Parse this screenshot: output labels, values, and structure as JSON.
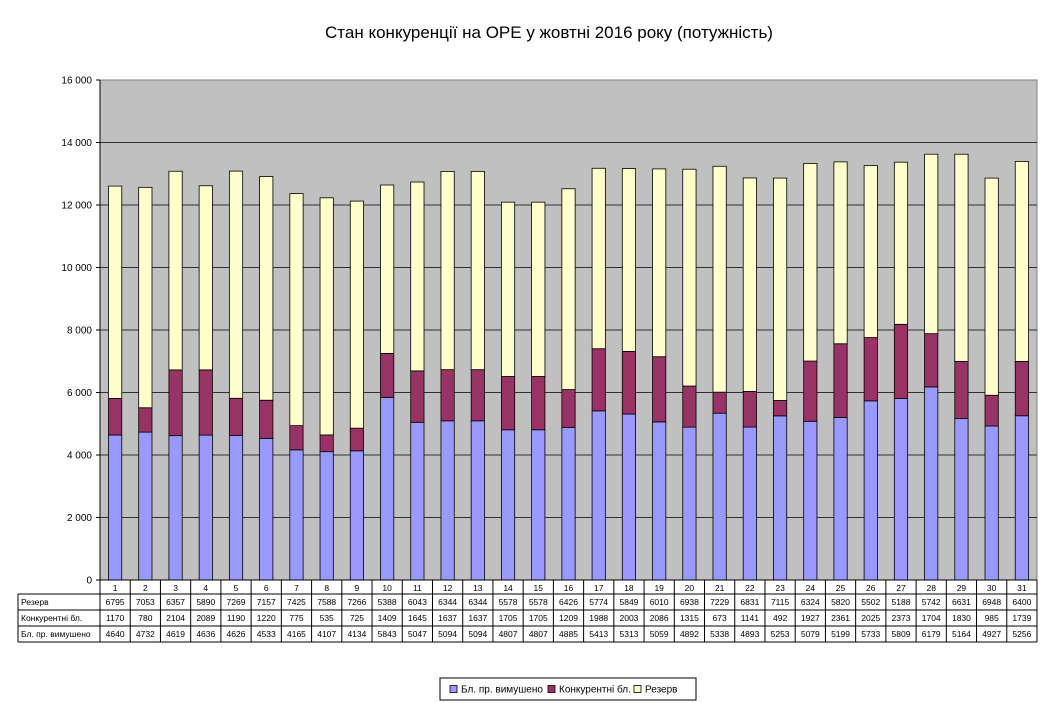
{
  "chart_data": {
    "type": "bar",
    "stacked": true,
    "title": "Стан конкуренції на ОРЕ  у жовтні 2016 року (потужність)",
    "xlabel": "",
    "ylabel": "",
    "ylim": [
      0,
      16000
    ],
    "yticks": [
      0,
      2000,
      4000,
      6000,
      8000,
      10000,
      12000,
      14000,
      16000
    ],
    "ytick_labels": [
      "0",
      "2 000",
      "4 000",
      "6 000",
      "8 000",
      "10 000",
      "12 000",
      "14 000",
      "16 000"
    ],
    "grid": true,
    "legend_position": "bottom",
    "categories": [
      "1",
      "2",
      "3",
      "4",
      "5",
      "6",
      "7",
      "8",
      "9",
      "10",
      "11",
      "12",
      "13",
      "14",
      "15",
      "16",
      "17",
      "18",
      "19",
      "20",
      "21",
      "22",
      "23",
      "24",
      "25",
      "26",
      "27",
      "28",
      "29",
      "30",
      "31"
    ],
    "series": [
      {
        "name": "Бл. пр. вимушено",
        "color": "#9999ff",
        "values": [
          4640,
          4732,
          4619,
          4636,
          4626,
          4533,
          4165,
          4107,
          4134,
          5843,
          5047,
          5094,
          5094,
          4807,
          4807,
          4885,
          5413,
          5313,
          5059,
          4892,
          5338,
          4893,
          5253,
          5079,
          5199,
          5733,
          5809,
          6179,
          5164,
          4927,
          5256
        ]
      },
      {
        "name": "Конкурентні бл.",
        "color": "#993366",
        "values": [
          1170,
          780,
          2104,
          2089,
          1190,
          1220,
          775,
          535,
          725,
          1409,
          1645,
          1637,
          1637,
          1705,
          1705,
          1209,
          1988,
          2003,
          2086,
          1315,
          673,
          1141,
          492,
          1927,
          2361,
          2025,
          2373,
          1704,
          1830,
          985,
          1739
        ]
      },
      {
        "name": "Резерв",
        "color": "#ffffcc",
        "values": [
          6795,
          7053,
          6357,
          5890,
          7269,
          7157,
          7425,
          7588,
          7266,
          5388,
          6043,
          6344,
          6344,
          5578,
          5578,
          6426,
          5774,
          5849,
          6010,
          6938,
          7229,
          6831,
          7115,
          6324,
          5820,
          5502,
          5188,
          5742,
          6631,
          6948,
          6400
        ]
      }
    ],
    "table": {
      "rows": [
        {
          "label": "Резерв",
          "series_index": 2
        },
        {
          "label": "Конкурентні бл.",
          "series_index": 1
        },
        {
          "label": "Бл. пр. вимушено",
          "series_index": 0
        }
      ]
    },
    "legend": [
      "Бл. пр. вимушено",
      "Конкурентні бл.",
      "Резерв"
    ]
  }
}
